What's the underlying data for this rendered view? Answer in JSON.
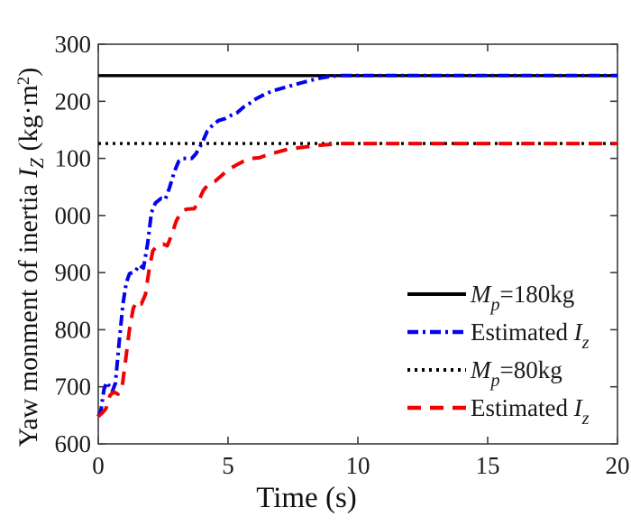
{
  "figure": {
    "background": "#ffffff",
    "axis_color": "#3d3d3d",
    "text_color": "#1a1a1a"
  },
  "chart_data": {
    "type": "line",
    "title": "",
    "xlabel": "Time (s)",
    "ylabel": "Yaw monment of inertia I_Z (kg·m^2)",
    "ylabel_parts": {
      "text": "Yaw monment of inertia ",
      "var": "I",
      "var_sub": "Z",
      "unit_open": " (kg·m",
      "unit_sup": "2",
      "unit_close": ")"
    },
    "xlim": [
      0,
      20
    ],
    "ylim": [
      600,
      1300
    ],
    "grid": false,
    "xticks": [
      {
        "value": 0,
        "label": "0"
      },
      {
        "value": 5,
        "label": "5"
      },
      {
        "value": 10,
        "label": "10"
      },
      {
        "value": 15,
        "label": "15"
      },
      {
        "value": 20,
        "label": "20"
      }
    ],
    "yticks": [
      {
        "value": 600,
        "label": "600"
      },
      {
        "value": 700,
        "label": "700"
      },
      {
        "value": 800,
        "label": "800"
      },
      {
        "value": 900,
        "label": "900"
      },
      {
        "value": 1000,
        "label": "000"
      },
      {
        "value": 1100,
        "label": "100"
      },
      {
        "value": 1200,
        "label": "200"
      },
      {
        "value": 1300,
        "label": "300"
      }
    ],
    "series": [
      {
        "id": "Mp-180",
        "name": "Mp=180kg reference",
        "color": "#000000",
        "style": "solid",
        "width": 3.4,
        "points": [
          [
            0,
            1245
          ],
          [
            20,
            1245
          ]
        ]
      },
      {
        "id": "Mp-80",
        "name": "Mp=80kg reference",
        "color": "#000000",
        "style": "dotted",
        "width": 3.4,
        "points": [
          [
            0,
            1126
          ],
          [
            20,
            1126
          ]
        ]
      },
      {
        "id": "est-Iz-180",
        "name": "Estimated Iz (Mp=180kg)",
        "color": "#0202ee",
        "style": "dashdot",
        "width": 4,
        "points": [
          [
            0,
            648
          ],
          [
            0.1,
            658
          ],
          [
            0.22,
            695
          ],
          [
            0.32,
            708
          ],
          [
            0.44,
            700
          ],
          [
            0.54,
            692
          ],
          [
            0.66,
            706
          ],
          [
            0.8,
            775
          ],
          [
            0.95,
            845
          ],
          [
            1.08,
            882
          ],
          [
            1.2,
            898
          ],
          [
            1.42,
            902
          ],
          [
            1.58,
            913
          ],
          [
            1.74,
            908
          ],
          [
            1.9,
            950
          ],
          [
            2.05,
            1005
          ],
          [
            2.2,
            1022
          ],
          [
            2.42,
            1030
          ],
          [
            2.58,
            1028
          ],
          [
            2.74,
            1048
          ],
          [
            2.94,
            1078
          ],
          [
            3.1,
            1095
          ],
          [
            3.25,
            1100
          ],
          [
            3.6,
            1100
          ],
          [
            3.76,
            1108
          ],
          [
            4.0,
            1127
          ],
          [
            4.2,
            1148
          ],
          [
            4.4,
            1158
          ],
          [
            4.62,
            1166
          ],
          [
            4.9,
            1170
          ],
          [
            5.1,
            1175
          ],
          [
            5.35,
            1180
          ],
          [
            5.6,
            1190
          ],
          [
            5.85,
            1197
          ],
          [
            6.1,
            1205
          ],
          [
            6.4,
            1212
          ],
          [
            6.7,
            1218
          ],
          [
            7.0,
            1222
          ],
          [
            7.4,
            1227
          ],
          [
            7.8,
            1232
          ],
          [
            8.2,
            1237
          ],
          [
            8.6,
            1241
          ],
          [
            9.0,
            1244
          ],
          [
            9.4,
            1245
          ],
          [
            20,
            1245
          ]
        ]
      },
      {
        "id": "est-Iz-80",
        "name": "Estimated Iz (Mp=80kg)",
        "color": "#ee0202",
        "style": "dashed",
        "width": 4,
        "points": [
          [
            0,
            648
          ],
          [
            0.15,
            654
          ],
          [
            0.3,
            662
          ],
          [
            0.45,
            685
          ],
          [
            0.6,
            691
          ],
          [
            0.76,
            687
          ],
          [
            0.92,
            700
          ],
          [
            1.05,
            745
          ],
          [
            1.2,
            800
          ],
          [
            1.35,
            838
          ],
          [
            1.5,
            850
          ],
          [
            1.66,
            845
          ],
          [
            1.82,
            862
          ],
          [
            1.96,
            905
          ],
          [
            2.1,
            938
          ],
          [
            2.25,
            946
          ],
          [
            2.5,
            950
          ],
          [
            2.66,
            947
          ],
          [
            2.82,
            965
          ],
          [
            3.0,
            990
          ],
          [
            3.2,
            1007
          ],
          [
            3.4,
            1011
          ],
          [
            3.7,
            1012
          ],
          [
            3.86,
            1025
          ],
          [
            4.05,
            1044
          ],
          [
            4.25,
            1055
          ],
          [
            4.5,
            1060
          ],
          [
            4.75,
            1070
          ],
          [
            5.0,
            1080
          ],
          [
            5.3,
            1088
          ],
          [
            5.6,
            1095
          ],
          [
            5.9,
            1100
          ],
          [
            6.2,
            1101
          ],
          [
            6.5,
            1106
          ],
          [
            6.9,
            1111
          ],
          [
            7.3,
            1116
          ],
          [
            7.8,
            1119
          ],
          [
            8.3,
            1122
          ],
          [
            8.8,
            1124
          ],
          [
            9.3,
            1126
          ],
          [
            20,
            1126
          ]
        ]
      }
    ],
    "legend": {
      "position": "inside lower right",
      "entries": [
        {
          "series": "Mp-180",
          "roman": "",
          "italic": "M",
          "sub": "p",
          "post": "=180kg"
        },
        {
          "series": "est-Iz-180",
          "roman": "Estimated ",
          "italic": "I",
          "sub": "z",
          "post": ""
        },
        {
          "series": "Mp-80",
          "roman": "",
          "italic": "M",
          "sub": "p",
          "post": "=80kg"
        },
        {
          "series": "est-Iz-80",
          "roman": "Estimated ",
          "italic": "I",
          "sub": "z",
          "post": ""
        }
      ]
    }
  }
}
